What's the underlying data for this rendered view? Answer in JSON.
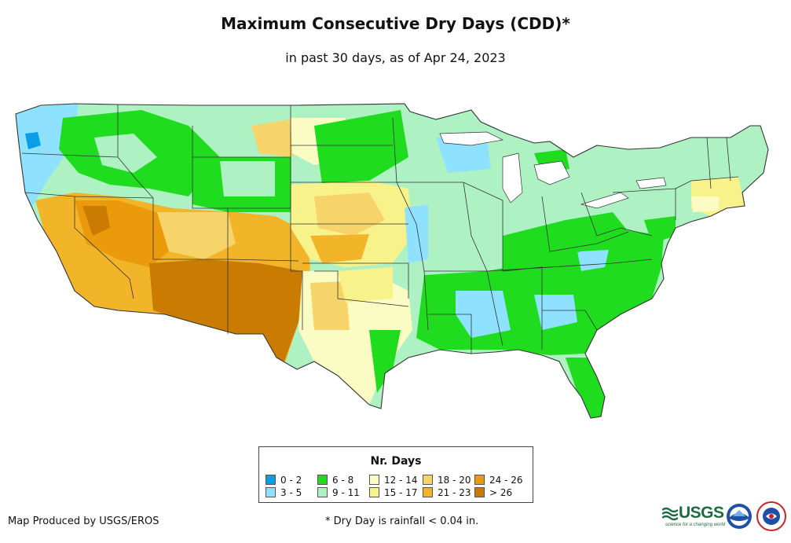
{
  "title": "Maximum Consecutive Dry Days (CDD)*",
  "subtitle": "in past 30 days, as of Apr 24, 2023",
  "legend": {
    "title": "Nr. Days",
    "items": [
      {
        "label": "0 - 2",
        "color": "#0a9ee8"
      },
      {
        "label": "3 - 5",
        "color": "#8ee2ff"
      },
      {
        "label": "6 - 8",
        "color": "#1fdc1f"
      },
      {
        "label": "9 - 11",
        "color": "#aef2c4"
      },
      {
        "label": "12 - 14",
        "color": "#fafcc4"
      },
      {
        "label": "15 - 17",
        "color": "#f7f28a"
      },
      {
        "label": "18 - 20",
        "color": "#f6d46a"
      },
      {
        "label": "21 - 23",
        "color": "#f2b52a"
      },
      {
        "label": "24 - 26",
        "color": "#eb9a0c"
      },
      {
        "label": "> 26",
        "color": "#c97b02"
      }
    ]
  },
  "credit": "Map Produced by USGS/EROS",
  "footnote": "* Dry Day is rainfall < 0.04 in.",
  "logos": {
    "usgs": "USGS",
    "usgs_tagline": "science for a changing world"
  }
}
